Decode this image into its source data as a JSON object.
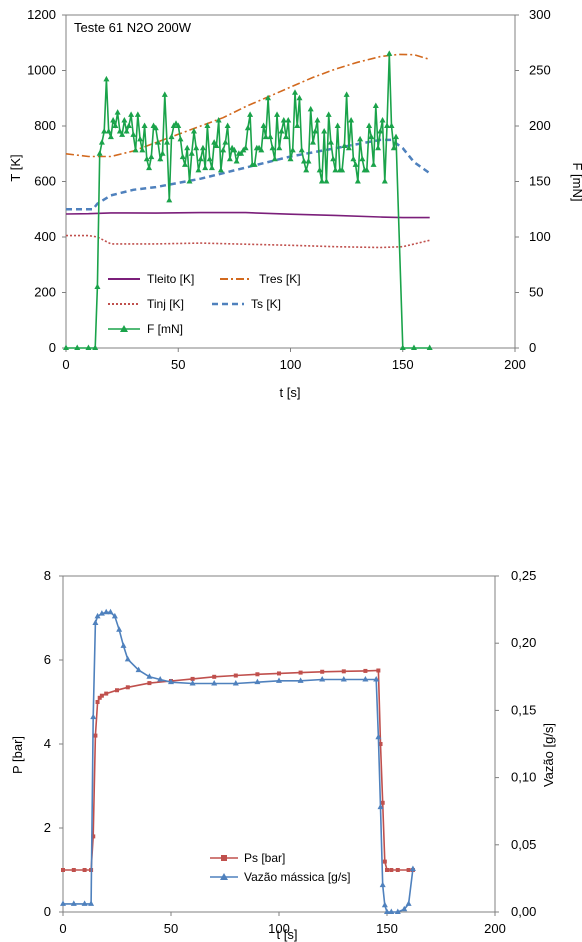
{
  "chart_data": [
    {
      "type": "line",
      "title": "Teste 61 N2O  200W",
      "xlabel": "t [s]",
      "ylabel": "T [K]",
      "y2label": "F [mN]",
      "xlim": [
        0,
        200
      ],
      "ylim": [
        0,
        1200
      ],
      "y2lim": [
        0,
        300
      ],
      "xticks": [
        "0",
        "50",
        "100",
        "150",
        "200"
      ],
      "yticks": [
        "0",
        "200",
        "400",
        "600",
        "800",
        "1000",
        "1200"
      ],
      "y2ticks": [
        "0",
        "50",
        "100",
        "150",
        "200",
        "250",
        "300"
      ],
      "grid": false,
      "legend_position": "lower-left",
      "series": [
        {
          "name": "Tleito  [K]",
          "axis": "left",
          "color": "#7b1f7a",
          "style": "solid",
          "x": [
            0,
            10,
            20,
            40,
            60,
            80,
            100,
            120,
            140,
            150,
            162
          ],
          "y": [
            483,
            484,
            487,
            486,
            488,
            488,
            482,
            478,
            472,
            470,
            470
          ]
        },
        {
          "name": "Tres [K]",
          "axis": "left",
          "color": "#d2691e",
          "style": "dashdot",
          "x": [
            0,
            10,
            20,
            30,
            40,
            50,
            60,
            70,
            80,
            90,
            100,
            110,
            120,
            130,
            140,
            148,
            155,
            162
          ],
          "y": [
            700,
            690,
            690,
            710,
            740,
            770,
            800,
            830,
            870,
            905,
            940,
            975,
            1005,
            1030,
            1050,
            1058,
            1057,
            1040
          ]
        },
        {
          "name": "Tinj [K]",
          "axis": "left",
          "color": "#c0504d",
          "style": "dotted",
          "x": [
            0,
            10,
            14,
            20,
            40,
            60,
            80,
            100,
            120,
            140,
            150,
            162
          ],
          "y": [
            405,
            405,
            400,
            375,
            375,
            378,
            374,
            370,
            365,
            362,
            365,
            388
          ]
        },
        {
          "name": "Ts  [K]",
          "axis": "left",
          "color": "#4f81bd",
          "style": "dashed",
          "x": [
            0,
            12,
            14,
            20,
            30,
            40,
            60,
            80,
            100,
            120,
            140,
            145,
            150,
            155,
            162
          ],
          "y": [
            500,
            500,
            520,
            550,
            570,
            580,
            610,
            650,
            690,
            720,
            750,
            750,
            720,
            670,
            630
          ]
        },
        {
          "name": "F [mN]",
          "axis": "right",
          "color": "#1aa34a",
          "style": "solid-marker",
          "x": [
            0,
            5,
            10,
            13,
            14,
            15,
            16,
            17,
            18,
            19,
            20,
            21,
            22,
            23,
            24,
            25,
            26,
            27,
            28,
            29,
            30,
            31,
            32,
            33,
            34,
            35,
            36,
            37,
            38,
            39,
            40,
            41,
            42,
            43,
            44,
            45,
            46,
            47,
            48,
            49,
            50,
            51,
            52,
            53,
            54,
            55,
            56,
            57,
            58,
            59,
            60,
            61,
            62,
            63,
            64,
            65,
            66,
            67,
            68,
            69,
            70,
            71,
            72,
            73,
            74,
            75,
            76,
            77,
            78,
            79,
            80,
            81,
            82,
            83,
            84,
            85,
            86,
            87,
            88,
            89,
            90,
            91,
            92,
            93,
            94,
            95,
            96,
            97,
            98,
            99,
            100,
            101,
            102,
            103,
            104,
            105,
            106,
            107,
            108,
            109,
            110,
            111,
            112,
            113,
            114,
            115,
            116,
            117,
            118,
            119,
            120,
            121,
            122,
            123,
            124,
            125,
            126,
            127,
            128,
            129,
            130,
            131,
            132,
            133,
            134,
            135,
            136,
            137,
            138,
            139,
            140,
            141,
            142,
            143,
            144,
            145,
            146,
            147,
            150,
            155,
            162
          ],
          "y": [
            0,
            0,
            0,
            0,
            55,
            175,
            185,
            195,
            242,
            195,
            190,
            205,
            200,
            212,
            195,
            192,
            205,
            195,
            200,
            210,
            192,
            178,
            210,
            188,
            178,
            200,
            170,
            162,
            172,
            200,
            198,
            185,
            170,
            175,
            228,
            185,
            133,
            190,
            200,
            202,
            200,
            188,
            172,
            165,
            180,
            150,
            175,
            195,
            180,
            160,
            170,
            180,
            162,
            200,
            170,
            162,
            185,
            182,
            205,
            160,
            178,
            185,
            200,
            170,
            180,
            178,
            168,
            175,
            175,
            178,
            180,
            198,
            210,
            165,
            165,
            180,
            180,
            178,
            200,
            190,
            225,
            190,
            180,
            170,
            210,
            180,
            195,
            205,
            190,
            205,
            170,
            178,
            230,
            200,
            225,
            178,
            168,
            160,
            168,
            215,
            185,
            195,
            205,
            160,
            150,
            195,
            150,
            210,
            185,
            170,
            160,
            200,
            160,
            160,
            182,
            228,
            180,
            205,
            170,
            165,
            150,
            188,
            170,
            160,
            160,
            200,
            190,
            165,
            218,
            180,
            195,
            205,
            150,
            200,
            265,
            200,
            180,
            190,
            0,
            0,
            0
          ]
        }
      ]
    },
    {
      "type": "line",
      "title": "",
      "xlabel": "t [s]",
      "ylabel": "P [bar]",
      "y2label": "Vazão [g/s]",
      "xlim": [
        0,
        200
      ],
      "ylim": [
        0,
        8
      ],
      "y2lim": [
        0,
        0.25
      ],
      "xticks": [
        "0",
        "50",
        "100",
        "150",
        "200"
      ],
      "yticks": [
        "0",
        "2",
        "4",
        "6",
        "8"
      ],
      "y2ticks": [
        "0,00",
        "0,05",
        "0,10",
        "0,15",
        "0,20",
        "0,25"
      ],
      "grid": false,
      "legend_position": "bottom-center",
      "series": [
        {
          "name": "Ps [bar]",
          "axis": "left",
          "color": "#c0504d",
          "style": "solid-marker",
          "x": [
            0,
            5,
            10,
            13,
            14,
            15,
            16,
            17,
            18,
            20,
            25,
            30,
            40,
            50,
            60,
            70,
            80,
            90,
            100,
            110,
            120,
            130,
            140,
            146,
            147,
            148,
            149,
            150,
            152,
            155,
            160,
            162
          ],
          "y": [
            1.0,
            1.0,
            1.0,
            1.0,
            1.8,
            4.2,
            5.0,
            5.1,
            5.15,
            5.2,
            5.28,
            5.35,
            5.45,
            5.5,
            5.55,
            5.6,
            5.63,
            5.66,
            5.68,
            5.7,
            5.72,
            5.73,
            5.74,
            5.75,
            4.0,
            2.6,
            1.2,
            1.0,
            1.0,
            1.0,
            1.0,
            1.0
          ]
        },
        {
          "name": "Vazão mássica [g/s]",
          "axis": "right",
          "color": "#4f81bd",
          "style": "solid-marker",
          "x": [
            0,
            5,
            10,
            13,
            14,
            15,
            16,
            18,
            20,
            22,
            24,
            26,
            28,
            30,
            35,
            40,
            45,
            50,
            60,
            70,
            80,
            90,
            100,
            110,
            120,
            130,
            140,
            145,
            146,
            147,
            148,
            149,
            150,
            152,
            155,
            158,
            160,
            162
          ],
          "y": [
            0.006,
            0.006,
            0.006,
            0.006,
            0.145,
            0.215,
            0.22,
            0.222,
            0.223,
            0.223,
            0.22,
            0.21,
            0.198,
            0.188,
            0.18,
            0.175,
            0.173,
            0.171,
            0.17,
            0.17,
            0.17,
            0.171,
            0.172,
            0.172,
            0.173,
            0.173,
            0.173,
            0.173,
            0.13,
            0.078,
            0.02,
            0.005,
            0.0,
            0.0,
            0.0,
            0.002,
            0.006,
            0.032
          ]
        }
      ]
    }
  ]
}
